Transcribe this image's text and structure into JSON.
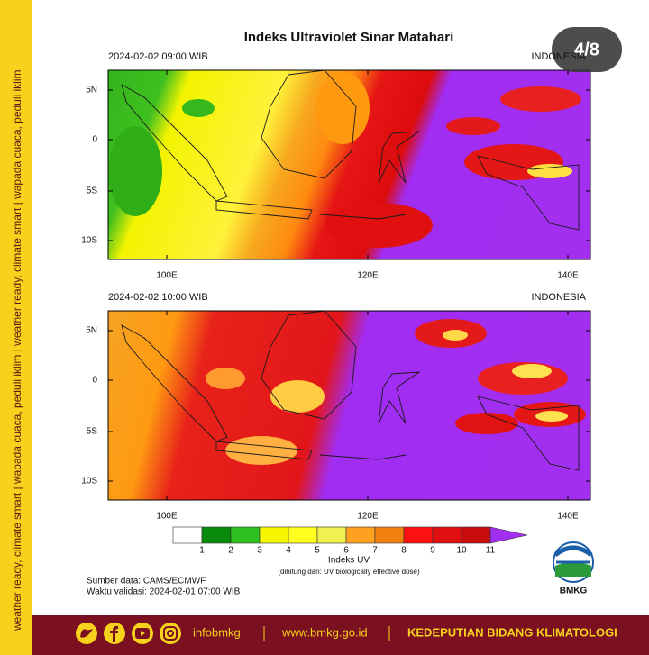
{
  "sidebar": "weather ready, climate smart | wapada cuaca, peduli iklim | weather ready, climate smart | wapada cuaca, peduli iklim",
  "badge": "4/8",
  "title": "Indeks Ultraviolet Sinar Matahari",
  "maps": [
    {
      "time": "2024-02-02 09:00 WIB",
      "region": "INDONESIA",
      "lat_labels": [
        "5N",
        "0",
        "5S",
        "10S"
      ],
      "lon_labels": [
        "100E",
        "120E",
        "140E"
      ]
    },
    {
      "time": "2024-02-02 10:00 WIB",
      "region": "INDONESIA",
      "lat_labels": [
        "5N",
        "0",
        "5S",
        "10S"
      ],
      "lon_labels": [
        "100E",
        "120E",
        "140E"
      ]
    }
  ],
  "legend": {
    "ticks": [
      1,
      2,
      3,
      4,
      5,
      6,
      7,
      8,
      9,
      10,
      11
    ],
    "title": "Indeks UV",
    "note": "(dihitung dari: UV biologically effective dose)"
  },
  "source": "Sumber data: CAMS/ECMWF",
  "validity": "Waktu validasi: 2024-02-01 07:00 WIB",
  "logo": "BMKG",
  "footer": {
    "handle": "infobmkg",
    "website": "www.bmkg.go.id",
    "unit": "KEDEPUTIAN BIDANG KLIMATOLOGI"
  }
}
